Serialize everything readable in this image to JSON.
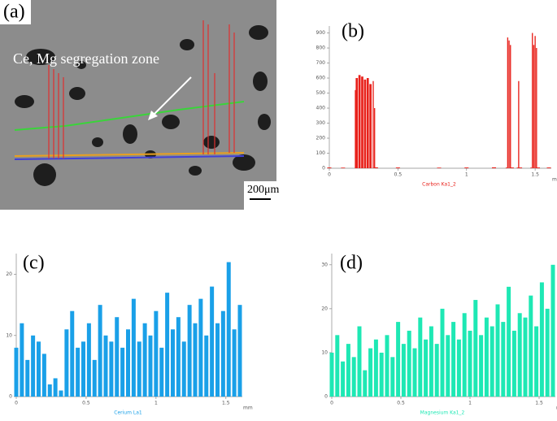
{
  "panel_a": {
    "label": "(a)",
    "annotation": "Ce, Mg segregation zone",
    "scale_bar": "200μm"
  },
  "chart_data": [
    {
      "type": "bar",
      "panel": "(b)",
      "xlabel": "mm",
      "series": [
        {
          "name": "Carbon Ka1_2",
          "color": "#e8201a",
          "x": [
            0,
            0.1,
            0.19,
            0.2,
            0.22,
            0.24,
            0.26,
            0.28,
            0.3,
            0.32,
            0.33,
            0.34,
            0.5,
            0.8,
            1.0,
            1.2,
            1.29,
            1.3,
            1.31,
            1.32,
            1.33,
            1.37,
            1.38,
            1.39,
            1.47,
            1.48,
            1.49,
            1.5,
            1.51,
            1.52,
            1.6
          ],
          "values": [
            5,
            4,
            520,
            600,
            620,
            610,
            590,
            600,
            560,
            580,
            400,
            6,
            5,
            4,
            5,
            6,
            5,
            870,
            850,
            820,
            5,
            5,
            580,
            5,
            5,
            900,
            820,
            880,
            800,
            5,
            5
          ]
        }
      ],
      "xlim": [
        0,
        1.6
      ],
      "xticks": [
        0,
        0.5,
        1,
        1.5
      ],
      "ylim": [
        0,
        930
      ],
      "yticks": [
        0,
        100,
        200,
        300,
        400,
        500,
        600,
        700,
        800,
        900
      ]
    },
    {
      "type": "bar",
      "panel": "(c)",
      "xlabel": "mm",
      "series": [
        {
          "name": "Cerium La1",
          "color": "#1aa0e8",
          "x": [
            0,
            0.04,
            0.08,
            0.12,
            0.16,
            0.2,
            0.24,
            0.28,
            0.32,
            0.36,
            0.4,
            0.44,
            0.48,
            0.52,
            0.56,
            0.6,
            0.64,
            0.68,
            0.72,
            0.76,
            0.8,
            0.84,
            0.88,
            0.92,
            0.96,
            1.0,
            1.04,
            1.08,
            1.12,
            1.16,
            1.2,
            1.24,
            1.28,
            1.32,
            1.36,
            1.4,
            1.44,
            1.48,
            1.52,
            1.56,
            1.6
          ],
          "values": [
            8,
            12,
            6,
            10,
            9,
            7,
            2,
            3,
            1,
            11,
            14,
            8,
            9,
            12,
            6,
            15,
            10,
            9,
            13,
            8,
            11,
            16,
            9,
            12,
            10,
            14,
            8,
            17,
            11,
            13,
            9,
            15,
            12,
            16,
            10,
            18,
            12,
            14,
            22,
            11,
            15
          ]
        }
      ],
      "xlim": [
        0,
        1.6
      ],
      "xticks": [
        0,
        0.5,
        1,
        1.5
      ],
      "ylim": [
        0,
        23
      ],
      "yticks": [
        0,
        10,
        20
      ]
    },
    {
      "type": "bar",
      "panel": "(d)",
      "xlabel": "mm",
      "series": [
        {
          "name": "Magnesium Ka1_2",
          "color": "#1ee8b4",
          "x": [
            0,
            0.04,
            0.08,
            0.12,
            0.16,
            0.2,
            0.24,
            0.28,
            0.32,
            0.36,
            0.4,
            0.44,
            0.48,
            0.52,
            0.56,
            0.6,
            0.64,
            0.68,
            0.72,
            0.76,
            0.8,
            0.84,
            0.88,
            0.92,
            0.96,
            1.0,
            1.04,
            1.08,
            1.12,
            1.16,
            1.2,
            1.24,
            1.28,
            1.32,
            1.36,
            1.4,
            1.44,
            1.48,
            1.52,
            1.56,
            1.6
          ],
          "values": [
            10,
            14,
            8,
            12,
            9,
            16,
            6,
            11,
            13,
            10,
            14,
            9,
            17,
            12,
            15,
            11,
            18,
            13,
            16,
            12,
            20,
            14,
            17,
            13,
            19,
            15,
            22,
            14,
            18,
            16,
            21,
            17,
            25,
            15,
            19,
            18,
            23,
            16,
            26,
            20,
            30
          ]
        }
      ],
      "xlim": [
        0,
        1.6
      ],
      "xticks": [
        0,
        0.5,
        1,
        1.5
      ],
      "ylim": [
        0,
        32
      ],
      "yticks": [
        0,
        10,
        20,
        30
      ]
    }
  ]
}
